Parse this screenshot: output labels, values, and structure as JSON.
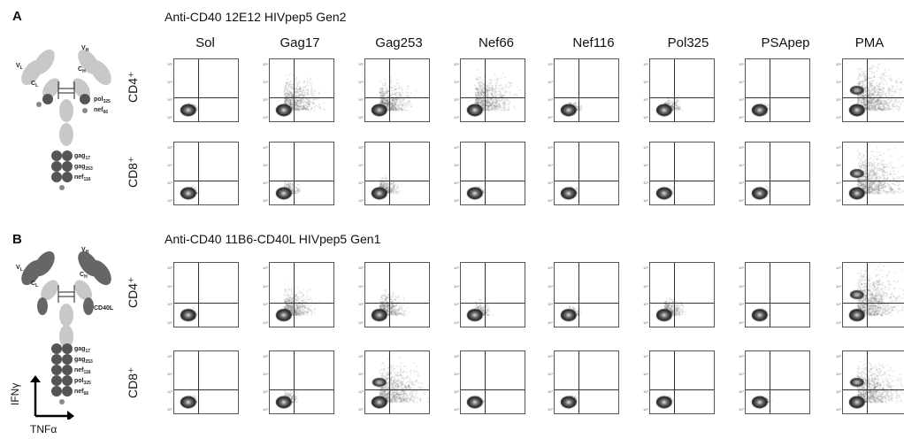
{
  "panels": [
    {
      "letter": "A",
      "title": "Anti-CD40 12E12 HIVpep5 Gen2",
      "antibody": {
        "heavy_var": "V",
        "heavy_var_sub": "H",
        "light_var": "V",
        "light_var_sub": "L",
        "light_const": "C",
        "light_const_sub": "L",
        "heavy_const": "C",
        "heavy_const_sub": "H",
        "side_labels": [
          {
            "base": "pol",
            "sub": "325"
          },
          {
            "base": "nef",
            "sub": "66"
          }
        ],
        "tail_labels": [
          {
            "base": "gag",
            "sub": "17"
          },
          {
            "base": "gag",
            "sub": "253"
          },
          {
            "base": "nef",
            "sub": "116"
          }
        ]
      },
      "rows": [
        "CD4⁺",
        "CD8⁺"
      ]
    },
    {
      "letter": "B",
      "title": "Anti-CD40 11B6-CD40L HIVpep5 Gen1",
      "antibody": {
        "heavy_var": "V",
        "heavy_var_sub": "H",
        "light_var": "V",
        "light_var_sub": "L",
        "light_const": "C",
        "light_const_sub": "L",
        "heavy_const": "C",
        "heavy_const_sub": "H",
        "side_labels": [
          {
            "base": "CD40L",
            "sub": ""
          }
        ],
        "tail_labels": [
          {
            "base": "gag",
            "sub": "17"
          },
          {
            "base": "gag",
            "sub": "253"
          },
          {
            "base": "nef",
            "sub": "116"
          },
          {
            "base": "pol",
            "sub": "325"
          },
          {
            "base": "nef",
            "sub": "66"
          }
        ]
      },
      "rows": [
        "CD4⁺",
        "CD8⁺"
      ]
    }
  ],
  "columns": [
    "Sol",
    "Gag17",
    "Gag253",
    "Nef66",
    "Nef116",
    "Pol325",
    "PSApep",
    "PMA"
  ],
  "axes": {
    "y": "IFNγ",
    "x": "TNFα"
  },
  "tick_labels": [
    "10⁵",
    "10⁴",
    "10³",
    "10²"
  ],
  "colors": {
    "dark": "#555555",
    "light": "#c8c8c8",
    "mid": "#888888"
  },
  "response_levels": {
    "A_CD4": [
      0.05,
      0.7,
      0.6,
      0.75,
      0.1,
      0.2,
      0.05,
      0.95
    ],
    "A_CD8": [
      0.05,
      0.2,
      0.3,
      0.05,
      0.05,
      0.05,
      0.05,
      0.9
    ],
    "B_CD4": [
      0.05,
      0.55,
      0.45,
      0.2,
      0.1,
      0.3,
      0.05,
      0.95
    ],
    "B_CD8": [
      0.05,
      0.15,
      0.85,
      0.05,
      0.05,
      0.05,
      0.05,
      0.85
    ]
  }
}
